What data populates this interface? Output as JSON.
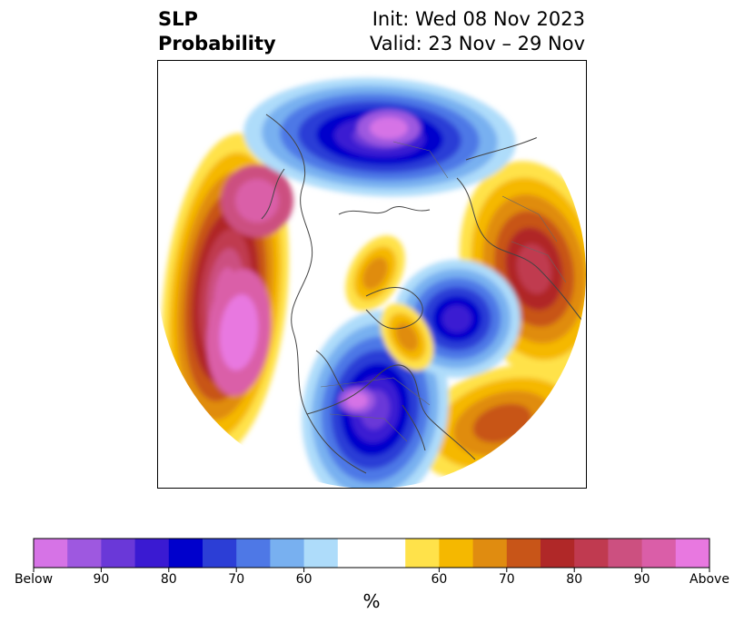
{
  "header": {
    "left_title": [
      "SLP",
      "Probability"
    ],
    "right_title": [
      "Init: Wed 08 Nov 2023",
      "Valid: 23 Nov – 29 Nov"
    ]
  },
  "map": {
    "projection": "north-polar-stereographic",
    "background": "#ffffff",
    "coastline_color": "#444444"
  },
  "colorbar": {
    "colors": [
      "#d673e6",
      "#9e58e0",
      "#6a38d8",
      "#3a1ad2",
      "#0000cc",
      "#2c3ed6",
      "#4e78e6",
      "#78b0f0",
      "#aedcfa",
      "#ffffff",
      "#ffe24a",
      "#f5b800",
      "#e08c10",
      "#c85518",
      "#b02828",
      "#c03a50",
      "#cc5080",
      "#da5ea8",
      "#e878e0"
    ],
    "ticks": [
      {
        "label": "Below",
        "index": 0
      },
      {
        "label": "90",
        "index": 2
      },
      {
        "label": "80",
        "index": 4
      },
      {
        "label": "70",
        "index": 6
      },
      {
        "label": "60",
        "index": 8
      },
      {
        "label": "60",
        "index": 12
      },
      {
        "label": "70",
        "index": 14
      },
      {
        "label": "80",
        "index": 16
      },
      {
        "label": "90",
        "index": 18
      },
      {
        "label": "Above",
        "index": 20
      }
    ],
    "unit": "%"
  }
}
